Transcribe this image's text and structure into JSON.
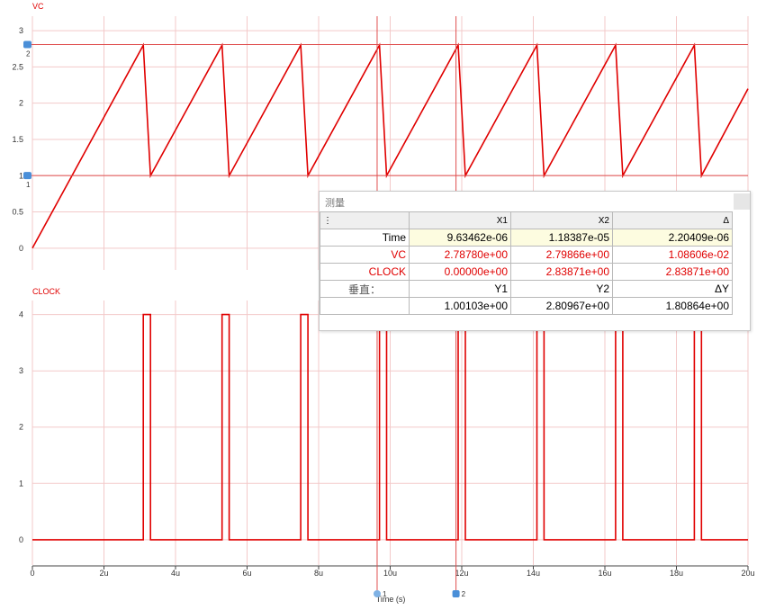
{
  "chart_data": [
    {
      "type": "line",
      "title": "VC",
      "ylim": [
        -0.3,
        3.2
      ],
      "xlim": [
        0,
        20
      ],
      "yticks": [
        "3",
        "2.5",
        "2",
        "1.5",
        "1",
        "0.5",
        "0"
      ],
      "ytick_values": [
        3,
        2.5,
        2,
        1.5,
        1,
        0.5,
        0
      ],
      "grid": true,
      "series": [
        {
          "color": "#e00000",
          "x": [
            0,
            3.1,
            3.3,
            5.3,
            5.5,
            7.5,
            7.7,
            9.7,
            9.9,
            11.9,
            12.1,
            14.1,
            14.3,
            16.3,
            16.5,
            18.5,
            18.7,
            20
          ],
          "y": [
            0,
            2.8,
            1.0,
            2.8,
            1.0,
            2.8,
            1.0,
            2.8,
            1.0,
            2.8,
            1.0,
            2.8,
            1.0,
            2.8,
            1.0,
            2.8,
            1.0,
            2.2
          ]
        }
      ]
    },
    {
      "type": "line",
      "title": "CLOCK",
      "xlabel": "Time (s)",
      "ylim": [
        -0.45,
        4.25
      ],
      "xlim": [
        0,
        20
      ],
      "yticks": [
        "4",
        "3",
        "2",
        "1",
        "0"
      ],
      "ytick_values": [
        4,
        3,
        2,
        1,
        0
      ],
      "xticks": [
        "0",
        "2u",
        "4u",
        "6u",
        "8u",
        "10u",
        "12u",
        "14u",
        "16u",
        "18u",
        "20u"
      ],
      "xtick_values": [
        0,
        2,
        4,
        6,
        8,
        10,
        12,
        14,
        16,
        18,
        20
      ],
      "grid": true,
      "series": [
        {
          "color": "#e00000",
          "x": [
            0,
            3.1,
            3.1,
            3.3,
            3.3,
            5.3,
            5.3,
            5.5,
            5.5,
            7.5,
            7.5,
            7.7,
            7.7,
            9.7,
            9.7,
            9.9,
            9.9,
            11.9,
            11.9,
            12.1,
            12.1,
            14.1,
            14.1,
            14.3,
            14.3,
            16.3,
            16.3,
            16.5,
            16.5,
            18.5,
            18.5,
            18.7,
            18.7,
            20
          ],
          "y": [
            0,
            0,
            4,
            4,
            0,
            0,
            4,
            4,
            0,
            0,
            4,
            4,
            0,
            0,
            4,
            4,
            0,
            0,
            4,
            4,
            0,
            0,
            4,
            4,
            0,
            0,
            4,
            4,
            0,
            0,
            4,
            4,
            0,
            0
          ]
        }
      ]
    }
  ],
  "cursors": {
    "x1": 9.63462,
    "x2": 11.8387,
    "y1": 1.00103,
    "y2": 2.80967,
    "x1_label": "1",
    "x2_label": "2",
    "y1_label": "1",
    "y2_label": "2"
  },
  "measurement": {
    "title": "测量",
    "header": [
      "⋮",
      "X1",
      "X2",
      "Δ"
    ],
    "rows": [
      [
        "Time",
        "9.63462e-06",
        "1.18387e-05",
        "2.20409e-06"
      ],
      [
        "VC",
        "2.78780e+00",
        "2.79866e+00",
        "1.08606e-02"
      ],
      [
        "CLOCK",
        "0.00000e+00",
        "2.83871e+00",
        "2.83871e+00"
      ],
      [
        "垂直：",
        "Y1",
        "Y2",
        "ΔY"
      ],
      [
        "",
        "1.00103e+00",
        "2.80967e+00",
        "1.80864e+00"
      ]
    ]
  },
  "colors": {
    "trace": "#e00000",
    "grid": "#f3c9c9",
    "cursor": "#e05050",
    "ycursor_marker": "#4a8fd8"
  }
}
